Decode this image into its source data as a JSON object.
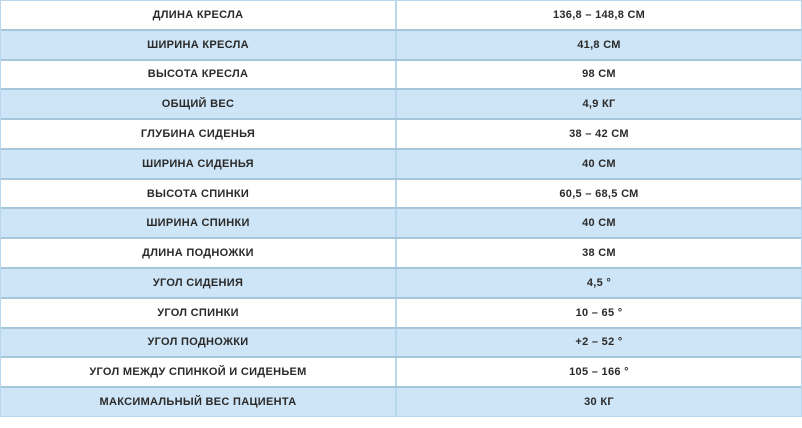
{
  "table": {
    "rows": [
      {
        "label": "ДЛИНА КРЕСЛА",
        "value": "136,8 – 148,8 см"
      },
      {
        "label": "ШИРИНА КРЕСЛА",
        "value": "41,8 см"
      },
      {
        "label": "ВЫСОТА КРЕСЛА",
        "value": "98 см"
      },
      {
        "label": "ОБЩИЙ ВЕС",
        "value": "4,9 кг"
      },
      {
        "label": "ГЛУБИНА СИДЕНЬЯ",
        "value": "38 – 42 см"
      },
      {
        "label": "ШИРИНА СИДЕНЬЯ",
        "value": "40 см"
      },
      {
        "label": "ВЫСОТА СПИНКИ",
        "value": "60,5 – 68,5 см"
      },
      {
        "label": "ШИРИНА СПИНКИ",
        "value": "40 см"
      },
      {
        "label": "ДЛИНА ПОДНОЖКИ",
        "value": "38 см"
      },
      {
        "label": "УГОЛ СИДЕНИЯ",
        "value": "4,5 °"
      },
      {
        "label": "УГОЛ СПИНКИ",
        "value": "10 – 65 °"
      },
      {
        "label": "УГОЛ ПОДНОЖКИ",
        "value": "+2 – 52 °"
      },
      {
        "label": "УГОЛ МЕЖДУ СПИНКОЙ И СИДЕНЬЕМ",
        "value": "105 – 166 °"
      },
      {
        "label": "МАКСИМАЛЬНЫЙ ВЕС ПАЦИЕНТА",
        "value": "30 кг"
      }
    ],
    "colors": {
      "row_bg": "#ffffff",
      "row_alt_bg": "#cde5f7",
      "outer_border": "#b9d7ec",
      "column_divider": "#b9d7ec",
      "row_divider": "#a6c6dc",
      "text": "#2b2a29"
    }
  }
}
